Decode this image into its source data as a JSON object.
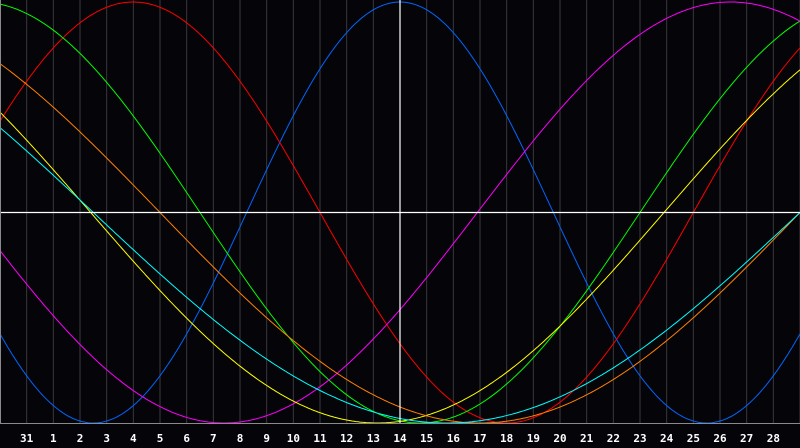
{
  "chart_data": {
    "type": "line",
    "title": "",
    "xlabel": "",
    "ylabel": "",
    "x_tick_labels": [
      "31",
      "1",
      "2",
      "3",
      "4",
      "5",
      "6",
      "7",
      "8",
      "9",
      "10",
      "11",
      "12",
      "13",
      "14",
      "15",
      "16",
      "17",
      "18",
      "19",
      "20",
      "21",
      "22",
      "23",
      "24",
      "25",
      "26",
      "27",
      "28"
    ],
    "x_range_days": [
      -1,
      29
    ],
    "y_range": [
      -1,
      1
    ],
    "current_day_marker": 14,
    "grid": true,
    "background": "#050408",
    "series": [
      {
        "color": "#0066ff",
        "period_days": 23,
        "peak_day": 14
      },
      {
        "color": "#ff0000",
        "period_days": 28,
        "peak_day": 4
      },
      {
        "color": "#00ff00",
        "period_days": 33,
        "peak_day": 31.25
      },
      {
        "color": "#ff00ff",
        "period_days": 38,
        "peak_day": 26.4
      },
      {
        "color": "#ffff00",
        "period_days": 43,
        "peak_day": -8.35
      },
      {
        "color": "#ff8000",
        "period_days": 48,
        "peak_day": -7
      },
      {
        "color": "#00ffff",
        "period_days": 53,
        "peak_day": -10.75
      }
    ]
  }
}
